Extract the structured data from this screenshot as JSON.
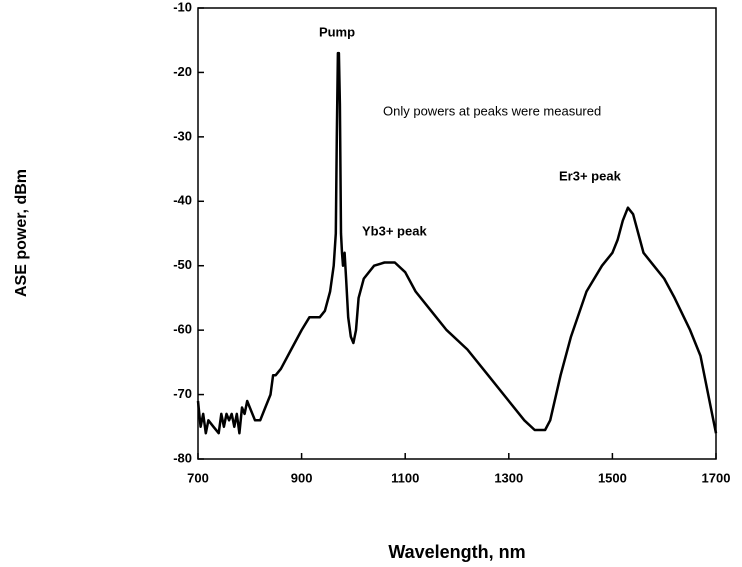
{
  "chart_data": {
    "type": "line",
    "xlabel": "Wavelength,  nm",
    "ylabel": "ASE power,  dBm",
    "annotations": [
      "Pump",
      "Only powers at peaks were measured",
      "Yb3+  peak",
      "Er3+  peak"
    ],
    "x": [
      700,
      705,
      710,
      715,
      720,
      730,
      740,
      745,
      750,
      755,
      760,
      765,
      770,
      775,
      780,
      785,
      790,
      795,
      800,
      810,
      820,
      830,
      840,
      845,
      850,
      860,
      880,
      900,
      915,
      925,
      935,
      945,
      955,
      962,
      966,
      968,
      970,
      972,
      974,
      976,
      978,
      980,
      983,
      986,
      990,
      995,
      1000,
      1005,
      1010,
      1020,
      1040,
      1060,
      1080,
      1100,
      1120,
      1150,
      1180,
      1220,
      1260,
      1300,
      1330,
      1350,
      1370,
      1380,
      1400,
      1420,
      1450,
      1480,
      1500,
      1510,
      1520,
      1530,
      1540,
      1550,
      1560,
      1580,
      1600,
      1620,
      1650,
      1670,
      1690,
      1700
    ],
    "series": [
      {
        "name": "ASE",
        "color": "#000000",
        "values": [
          -71,
          -75,
          -73,
          -76,
          -74,
          -75,
          -76,
          -73,
          -75,
          -73,
          -74,
          -73,
          -75,
          -73,
          -76,
          -72,
          -73,
          -71,
          -72,
          -74,
          -74,
          -72,
          -70,
          -67,
          -67,
          -66,
          -63,
          -60,
          -58,
          -58,
          -58,
          -57,
          -54,
          -50,
          -45,
          -30,
          -17,
          -17,
          -25,
          -45,
          -48,
          -50,
          -48,
          -52,
          -58,
          -61,
          -62,
          -60,
          -55,
          -52,
          -50,
          -49.5,
          -49.5,
          -51,
          -54,
          -57,
          -60,
          -63,
          -67,
          -71,
          -74,
          -75.5,
          -75.5,
          -74,
          -67,
          -61,
          -54,
          -50,
          -48,
          -46,
          -43,
          -41,
          -42,
          -45,
          -48,
          -50,
          -52,
          -55,
          -60,
          -64,
          -72,
          -76
        ]
      }
    ],
    "xlim": [
      700,
      1700
    ],
    "xticks": [
      700,
      900,
      1100,
      1300,
      1500,
      1700
    ],
    "ylim": [
      -80,
      -10
    ],
    "yticks": [
      -10,
      -20,
      -30,
      -40,
      -50,
      -60,
      -70,
      -80
    ],
    "grid": false
  }
}
